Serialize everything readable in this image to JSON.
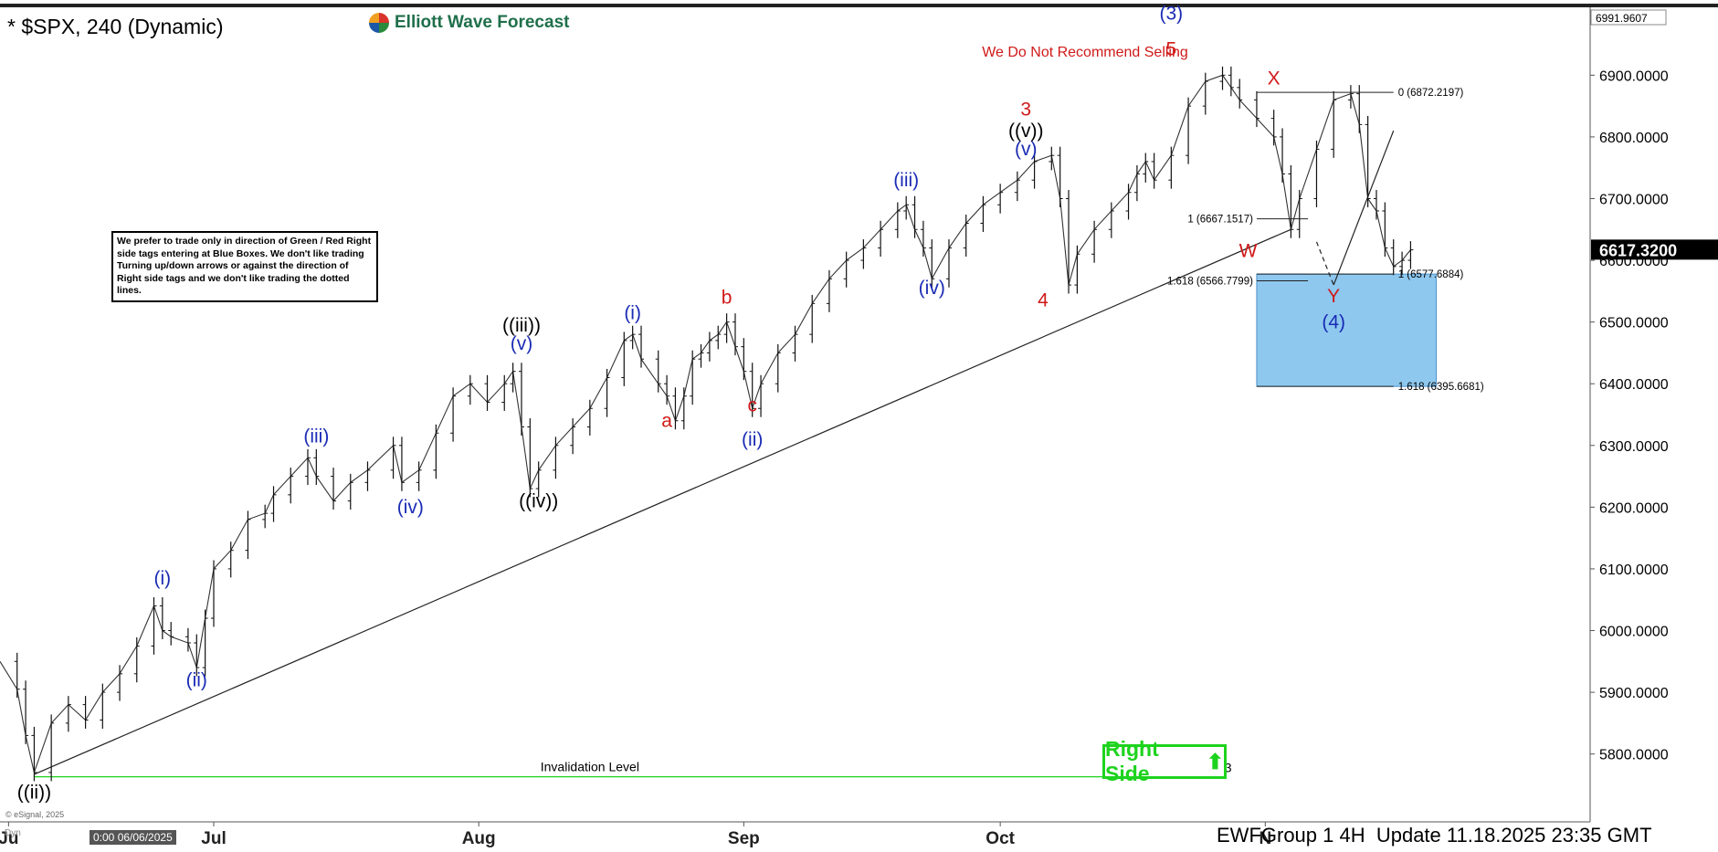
{
  "header": {
    "title": "* $SPX, 240 (Dynamic)",
    "brand": "Elliott Wave Forecast",
    "recommendation": "We Do Not Recommend Selling"
  },
  "note_text": "We prefer to trade only in direction of Green / Red Right side tags entering at Blue Boxes. We don't like trading Turning up/down arrows or against the direction of Right side tags and we don't like trading the dotted lines.",
  "right_side_tag": "Right Side",
  "footer": {
    "text": "EWFGroup 1 4H  Update 11.18.2025 23:35 GMT",
    "left_box": "0:00 06/06/2025",
    "copyright": "© eSignal, 2025",
    "dyn": "Dyn"
  },
  "colors": {
    "blue_label": "#1a2bb5",
    "red_label": "#d01919",
    "black_label": "#000000",
    "blue_box": "#8ec8ef",
    "green": "#1ed31e"
  },
  "chart_data": {
    "type": "line",
    "symbol": "$SPX",
    "timeframe": "240",
    "x_labels": [
      {
        "label": "Ju",
        "day": 0
      },
      {
        "label": "Jul",
        "day": 24
      },
      {
        "label": "Aug",
        "day": 55
      },
      {
        "label": "Sep",
        "day": 86
      },
      {
        "label": "Oct",
        "day": 116
      },
      {
        "label": "N",
        "day": 147
      }
    ],
    "y_ticks": [
      5800,
      5900,
      6000,
      6100,
      6200,
      6300,
      6400,
      6500,
      6600,
      6700,
      6800,
      6900
    ],
    "y_tick_labels": [
      "5800.0000",
      "5900.0000",
      "6000.0000",
      "6100.0000",
      "6200.0000",
      "6300.0000",
      "6400.0000",
      "6500.0000",
      "6600.0000",
      "6700.0000",
      "6800.0000",
      "6900.0000"
    ],
    "ylim": [
      5690,
      7010
    ],
    "xlim": [
      -1,
      185
    ],
    "top_price": "6991.9607",
    "current_price": {
      "label": "6617.3200",
      "value": 6617.32
    },
    "price_path": [
      [
        -1,
        5950
      ],
      [
        1,
        5905
      ],
      [
        2,
        5830
      ],
      [
        3,
        5770
      ],
      [
        5,
        5850
      ],
      [
        7,
        5880
      ],
      [
        9,
        5855
      ],
      [
        11,
        5900
      ],
      [
        13,
        5930
      ],
      [
        15,
        5975
      ],
      [
        17,
        6040
      ],
      [
        18,
        6000
      ],
      [
        19,
        5990
      ],
      [
        21,
        5980
      ],
      [
        22,
        5940
      ],
      [
        23,
        6020
      ],
      [
        24,
        6100
      ],
      [
        26,
        6130
      ],
      [
        28,
        6180
      ],
      [
        30,
        6190
      ],
      [
        31,
        6220
      ],
      [
        33,
        6250
      ],
      [
        35,
        6280
      ],
      [
        36,
        6250
      ],
      [
        38,
        6210
      ],
      [
        40,
        6240
      ],
      [
        42,
        6260
      ],
      [
        45,
        6300
      ],
      [
        46,
        6240
      ],
      [
        48,
        6260
      ],
      [
        50,
        6320
      ],
      [
        52,
        6380
      ],
      [
        54,
        6400
      ],
      [
        56,
        6370
      ],
      [
        58,
        6400
      ],
      [
        59,
        6420
      ],
      [
        60,
        6330
      ],
      [
        61,
        6230
      ],
      [
        62,
        6260
      ],
      [
        64,
        6300
      ],
      [
        66,
        6330
      ],
      [
        68,
        6360
      ],
      [
        70,
        6410
      ],
      [
        72,
        6470
      ],
      [
        73,
        6480
      ],
      [
        74,
        6440
      ],
      [
        76,
        6400
      ],
      [
        77,
        6380
      ],
      [
        78,
        6340
      ],
      [
        79,
        6380
      ],
      [
        80,
        6440
      ],
      [
        81,
        6450
      ],
      [
        82,
        6470
      ],
      [
        83,
        6480
      ],
      [
        84,
        6500
      ],
      [
        85,
        6460
      ],
      [
        86,
        6420
      ],
      [
        87,
        6360
      ],
      [
        88,
        6400
      ],
      [
        90,
        6450
      ],
      [
        92,
        6480
      ],
      [
        94,
        6530
      ],
      [
        96,
        6570
      ],
      [
        98,
        6600
      ],
      [
        100,
        6620
      ],
      [
        102,
        6650
      ],
      [
        104,
        6680
      ],
      [
        105,
        6690
      ],
      [
        106,
        6650
      ],
      [
        107,
        6620
      ],
      [
        108,
        6570
      ],
      [
        110,
        6620
      ],
      [
        112,
        6660
      ],
      [
        114,
        6690
      ],
      [
        116,
        6710
      ],
      [
        118,
        6730
      ],
      [
        120,
        6760
      ],
      [
        122,
        6770
      ],
      [
        123,
        6700
      ],
      [
        124,
        6560
      ],
      [
        125,
        6610
      ],
      [
        127,
        6650
      ],
      [
        129,
        6680
      ],
      [
        131,
        6710
      ],
      [
        132,
        6740
      ],
      [
        133,
        6760
      ],
      [
        134,
        6730
      ],
      [
        136,
        6770
      ],
      [
        138,
        6850
      ],
      [
        140,
        6890
      ],
      [
        142,
        6900
      ],
      [
        143,
        6880
      ],
      [
        144,
        6860
      ],
      [
        146,
        6830
      ],
      [
        148,
        6800
      ],
      [
        149,
        6740
      ],
      [
        150,
        6650
      ],
      [
        151,
        6700
      ],
      [
        153,
        6780
      ],
      [
        155,
        6860
      ],
      [
        157,
        6870
      ],
      [
        158,
        6820
      ],
      [
        159,
        6700
      ],
      [
        160,
        6680
      ],
      [
        161,
        6620
      ],
      [
        162,
        6590
      ],
      [
        163,
        6600
      ],
      [
        164,
        6617
      ]
    ],
    "trendline": [
      [
        3,
        5767
      ],
      [
        150,
        6650
      ]
    ],
    "projection_line": [
      [
        155,
        6560
      ],
      [
        162,
        6810
      ]
    ],
    "dashed_line": [
      [
        153,
        6630
      ],
      [
        155,
        6560
      ]
    ],
    "invalidation": {
      "label": "Invalidation Level",
      "value": 5763.0173,
      "value_label": "5763.0173"
    },
    "blue_box": {
      "x1": 146,
      "x2": 167,
      "y1": 6395.6681,
      "y2": 6577.6884
    },
    "fib_levels": [
      {
        "label": "0 (6872.2197)",
        "value": 6872.2197,
        "x1": 146,
        "x2": 162,
        "label_side": "right"
      },
      {
        "label": "1 (6667.1517)",
        "value": 6667.1517,
        "x1": 146,
        "x2": 152,
        "label_side": "left"
      },
      {
        "label": "1 (6577.6884)",
        "value": 6577.6884,
        "x1": 146,
        "x2": 162,
        "label_side": "right"
      },
      {
        "label": "1.618 (6566.7799)",
        "value": 6566.7799,
        "x1": 146,
        "x2": 152,
        "label_side": "left"
      },
      {
        "label": "1.618 (6395.6681)",
        "value": 6395.6681,
        "x1": 146,
        "x2": 162,
        "label_side": "right"
      }
    ],
    "wave_labels": [
      {
        "text": "((ii))",
        "x": 3,
        "y": 5728,
        "color": "black"
      },
      {
        "text": "(i)",
        "x": 18,
        "y": 6075,
        "color": "blue"
      },
      {
        "text": "(ii)",
        "x": 22,
        "y": 5910,
        "color": "blue"
      },
      {
        "text": "(iii)",
        "x": 36,
        "y": 6305,
        "color": "blue"
      },
      {
        "text": "(iv)",
        "x": 47,
        "y": 6190,
        "color": "blue"
      },
      {
        "text": "((iii))",
        "x": 60,
        "y": 6485,
        "color": "black"
      },
      {
        "text": "(v)",
        "x": 60,
        "y": 6455,
        "color": "blue"
      },
      {
        "text": "((iv))",
        "x": 62,
        "y": 6200,
        "color": "black"
      },
      {
        "text": "(i)",
        "x": 73,
        "y": 6505,
        "color": "blue"
      },
      {
        "text": "a",
        "x": 77,
        "y": 6330,
        "color": "red"
      },
      {
        "text": "b",
        "x": 84,
        "y": 6530,
        "color": "red"
      },
      {
        "text": "c",
        "x": 87,
        "y": 6355,
        "color": "red"
      },
      {
        "text": "(ii)",
        "x": 87,
        "y": 6300,
        "color": "blue"
      },
      {
        "text": "(iii)",
        "x": 105,
        "y": 6720,
        "color": "blue"
      },
      {
        "text": "(iv)",
        "x": 108,
        "y": 6545,
        "color": "blue"
      },
      {
        "text": "3",
        "x": 119,
        "y": 6835,
        "color": "red"
      },
      {
        "text": "((v))",
        "x": 119,
        "y": 6800,
        "color": "black"
      },
      {
        "text": "(v)",
        "x": 119,
        "y": 6770,
        "color": "blue"
      },
      {
        "text": "4",
        "x": 121,
        "y": 6525,
        "color": "red"
      },
      {
        "text": "(3)",
        "x": 136,
        "y": 6990,
        "color": "blue"
      },
      {
        "text": "5",
        "x": 136,
        "y": 6932,
        "color": "red"
      },
      {
        "text": "W",
        "x": 145,
        "y": 6605,
        "color": "red"
      },
      {
        "text": "X",
        "x": 148,
        "y": 6885,
        "color": "red"
      },
      {
        "text": "Y",
        "x": 155,
        "y": 6532,
        "color": "red"
      },
      {
        "text": "(4)",
        "x": 155,
        "y": 6490,
        "color": "blue"
      }
    ]
  }
}
